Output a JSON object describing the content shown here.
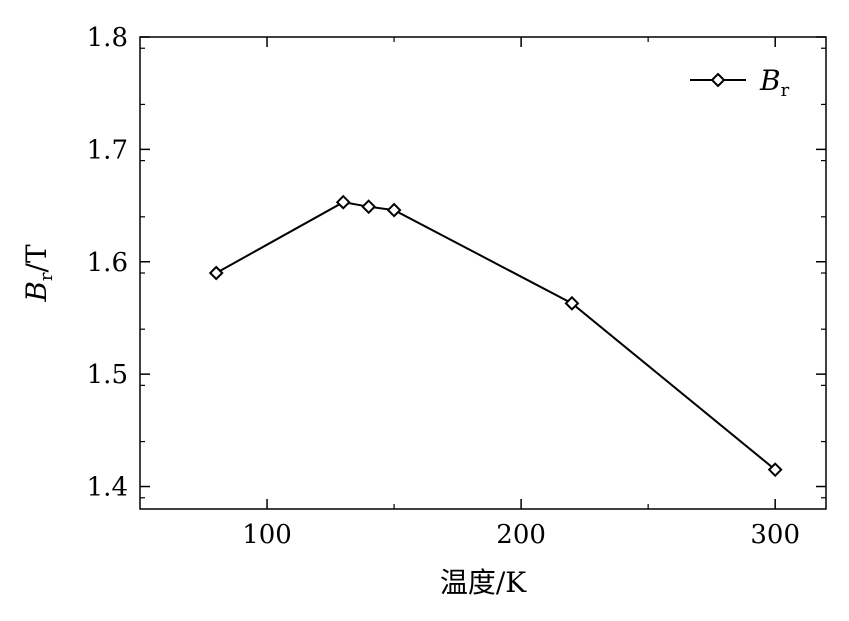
{
  "chart_data": {
    "type": "line",
    "xlabel_main": "温度",
    "xlabel_unit": "K",
    "ylabel_symbol": "B",
    "ylabel_subscript": "r",
    "ylabel_unit": "T",
    "xlim": [
      50,
      320
    ],
    "ylim": [
      1.38,
      1.8
    ],
    "x_ticks": [
      100,
      200,
      300
    ],
    "x_tick_labels": [
      "100",
      "200",
      "300"
    ],
    "y_ticks": [
      1.4,
      1.5,
      1.6,
      1.7,
      1.8
    ],
    "y_tick_labels": [
      "1.4",
      "1.5",
      "1.6",
      "1.7",
      "1.8"
    ],
    "legend_position": "top-right",
    "series": [
      {
        "name_symbol": "B",
        "name_subscript": "r",
        "marker": "diamond",
        "color": "#000000",
        "x": [
          80,
          130,
          140,
          150,
          220,
          300
        ],
        "y": [
          1.59,
          1.653,
          1.649,
          1.646,
          1.563,
          1.415
        ]
      }
    ]
  }
}
